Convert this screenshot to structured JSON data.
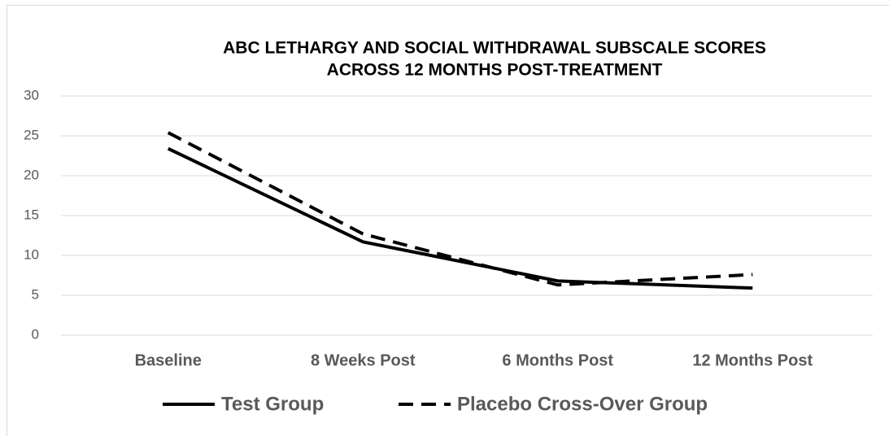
{
  "chart_data": {
    "type": "line",
    "title": [
      "ABC LETHARGY AND SOCIAL WITHDRAWAL SUBSCALE SCORES",
      "ACROSS 12 MONTHS POST-TREATMENT"
    ],
    "categories": [
      "Baseline",
      "8 Weeks Post",
      "6 Months Post",
      "12 Months Post"
    ],
    "series": [
      {
        "name": "Test Group",
        "color": "#000000",
        "dash": "solid",
        "values": [
          23.4,
          11.7,
          6.8,
          5.9
        ]
      },
      {
        "name": "Placebo Cross-Over Group",
        "color": "#000000",
        "dash": "dashed",
        "values": [
          25.4,
          12.7,
          6.3,
          7.6
        ]
      }
    ],
    "ylim": [
      0,
      30
    ],
    "yticks": [
      0,
      5,
      10,
      15,
      20,
      25,
      30
    ],
    "grid": true,
    "legend": "bottom"
  }
}
